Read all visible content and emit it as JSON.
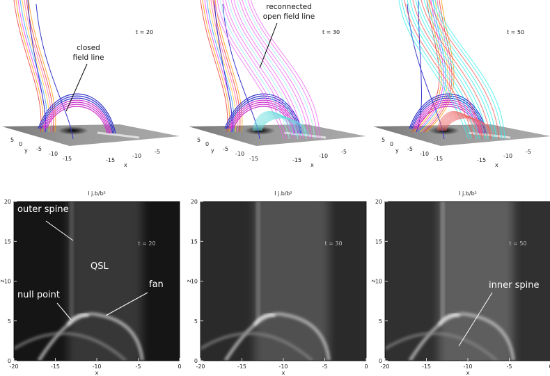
{
  "top_panels": [
    {
      "time_label": "t = 20",
      "annotation": [
        "closed",
        "field line"
      ]
    },
    {
      "time_label": "t = 30",
      "annotation": [
        "reconnected",
        "open field line"
      ]
    },
    {
      "time_label": "t = 50"
    }
  ],
  "perspective_axes": {
    "y_ticks": [
      "5",
      "0",
      "-5",
      "-10",
      "-15"
    ],
    "y_label": "y",
    "x_ticks": [
      "-15",
      "-10",
      "-5"
    ],
    "x_label": "x"
  },
  "maps": {
    "panels": [
      {
        "title": "I j.b/b²",
        "time_label": "t = 20",
        "annotations": [
          "outer spine",
          "QSL",
          "null point",
          "fan"
        ]
      },
      {
        "title": "I j.b/b²",
        "time_label": "t = 30"
      },
      {
        "title": "I j.b/b²",
        "time_label": "t = 50",
        "annotations": [
          "inner spine"
        ]
      }
    ],
    "xlim": [
      -20,
      0
    ],
    "ylim": [
      0,
      20
    ],
    "xticks": [
      -20,
      -15,
      -10,
      -5,
      0
    ],
    "yticks": [
      0,
      5,
      10,
      15,
      20
    ],
    "xlabel": "x",
    "ylabel": "z"
  }
}
